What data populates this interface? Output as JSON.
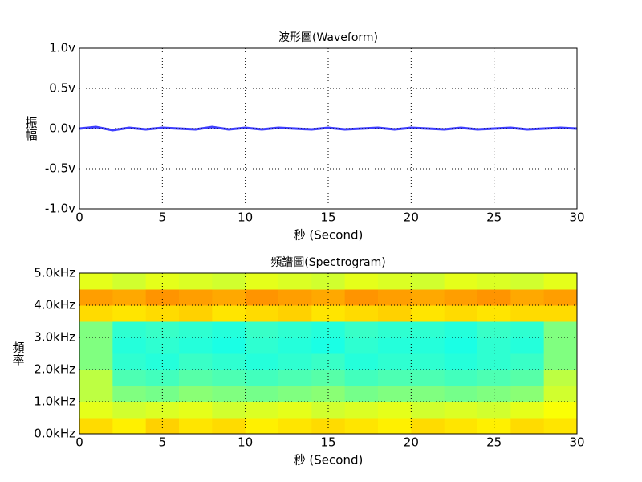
{
  "chart_data": [
    {
      "type": "line",
      "title": "波形圖(Waveform)",
      "x_label": "秒 (Second)",
      "y_label": "振幅",
      "x": [
        0,
        1,
        2,
        3,
        4,
        5,
        6,
        7,
        8,
        9,
        10,
        11,
        12,
        13,
        14,
        15,
        16,
        17,
        18,
        19,
        20,
        21,
        22,
        23,
        24,
        25,
        26,
        27,
        28,
        29,
        30
      ],
      "series": [
        {
          "color": "#3f3fff",
          "values": [
            0.0,
            0.02,
            -0.02,
            0.01,
            -0.01,
            0.01,
            0.0,
            -0.01,
            0.02,
            -0.01,
            0.01,
            -0.01,
            0.01,
            0.0,
            -0.01,
            0.01,
            -0.01,
            0.0,
            0.01,
            -0.01,
            0.01,
            0.0,
            -0.01,
            0.01,
            -0.01,
            0.0,
            0.01,
            -0.01,
            0.0,
            0.01,
            0.0
          ]
        }
      ],
      "xlim": [
        0,
        30
      ],
      "xticks": [
        0,
        5,
        10,
        15,
        20,
        25,
        30
      ],
      "ylim": [
        -1,
        1
      ],
      "yticks": [
        {
          "value": -1,
          "label": "-1.0v"
        },
        {
          "value": -0.5,
          "label": "-0.5v"
        },
        {
          "value": 0,
          "label": "0.0v"
        },
        {
          "value": 0.5,
          "label": "0.5v"
        },
        {
          "value": 1,
          "label": "1.0v"
        }
      ],
      "grid": true
    },
    {
      "type": "heatmap",
      "title": "頻譜圖(Spectrogram)",
      "x_label": "秒 (Second)",
      "y_label": "頻率",
      "colormap": "jet",
      "clim": [
        0,
        1
      ],
      "x": [
        1,
        3,
        5,
        7,
        9,
        11,
        13,
        15,
        17,
        19,
        21,
        23,
        25,
        27,
        29
      ],
      "y": [
        0.25,
        0.75,
        1.25,
        1.75,
        2.25,
        2.75,
        3.25,
        3.75,
        4.25,
        4.75
      ],
      "values": [
        [
          0.66,
          0.64,
          0.67,
          0.65,
          0.66,
          0.64,
          0.65,
          0.66,
          0.65,
          0.64,
          0.66,
          0.65,
          0.64,
          0.66,
          0.65
        ],
        [
          0.6,
          0.58,
          0.59,
          0.6,
          0.58,
          0.59,
          0.6,
          0.58,
          0.59,
          0.6,
          0.58,
          0.59,
          0.58,
          0.6,
          0.62
        ],
        [
          0.56,
          0.5,
          0.49,
          0.51,
          0.5,
          0.49,
          0.5,
          0.51,
          0.49,
          0.5,
          0.5,
          0.49,
          0.5,
          0.51,
          0.58
        ],
        [
          0.56,
          0.45,
          0.44,
          0.46,
          0.45,
          0.44,
          0.45,
          0.46,
          0.44,
          0.45,
          0.45,
          0.44,
          0.45,
          0.46,
          0.56
        ],
        [
          0.5,
          0.42,
          0.41,
          0.43,
          0.42,
          0.41,
          0.42,
          0.43,
          0.41,
          0.42,
          0.42,
          0.41,
          0.42,
          0.43,
          0.5
        ],
        [
          0.5,
          0.41,
          0.42,
          0.41,
          0.4,
          0.42,
          0.41,
          0.4,
          0.42,
          0.41,
          0.41,
          0.4,
          0.42,
          0.41,
          0.5
        ],
        [
          0.5,
          0.42,
          0.43,
          0.42,
          0.41,
          0.43,
          0.42,
          0.41,
          0.43,
          0.42,
          0.42,
          0.41,
          0.43,
          0.42,
          0.5
        ],
        [
          0.66,
          0.65,
          0.66,
          0.67,
          0.65,
          0.66,
          0.67,
          0.65,
          0.66,
          0.67,
          0.65,
          0.66,
          0.65,
          0.66,
          0.66
        ],
        [
          0.72,
          0.71,
          0.73,
          0.72,
          0.71,
          0.73,
          0.72,
          0.71,
          0.73,
          0.72,
          0.71,
          0.72,
          0.73,
          0.71,
          0.72
        ],
        [
          0.6,
          0.58,
          0.6,
          0.59,
          0.58,
          0.6,
          0.59,
          0.58,
          0.6,
          0.59,
          0.58,
          0.6,
          0.59,
          0.58,
          0.6
        ]
      ],
      "xlim": [
        0,
        30
      ],
      "xticks": [
        0,
        5,
        10,
        15,
        20,
        25,
        30
      ],
      "ylim": [
        0,
        5
      ],
      "yticks": [
        {
          "value": 0,
          "label": "0.0kHz"
        },
        {
          "value": 1,
          "label": "1.0kHz"
        },
        {
          "value": 2,
          "label": "2.0kHz"
        },
        {
          "value": 3,
          "label": "3.0kHz"
        },
        {
          "value": 4,
          "label": "4.0kHz"
        },
        {
          "value": 5,
          "label": "5.0kHz"
        }
      ],
      "grid": true
    }
  ]
}
